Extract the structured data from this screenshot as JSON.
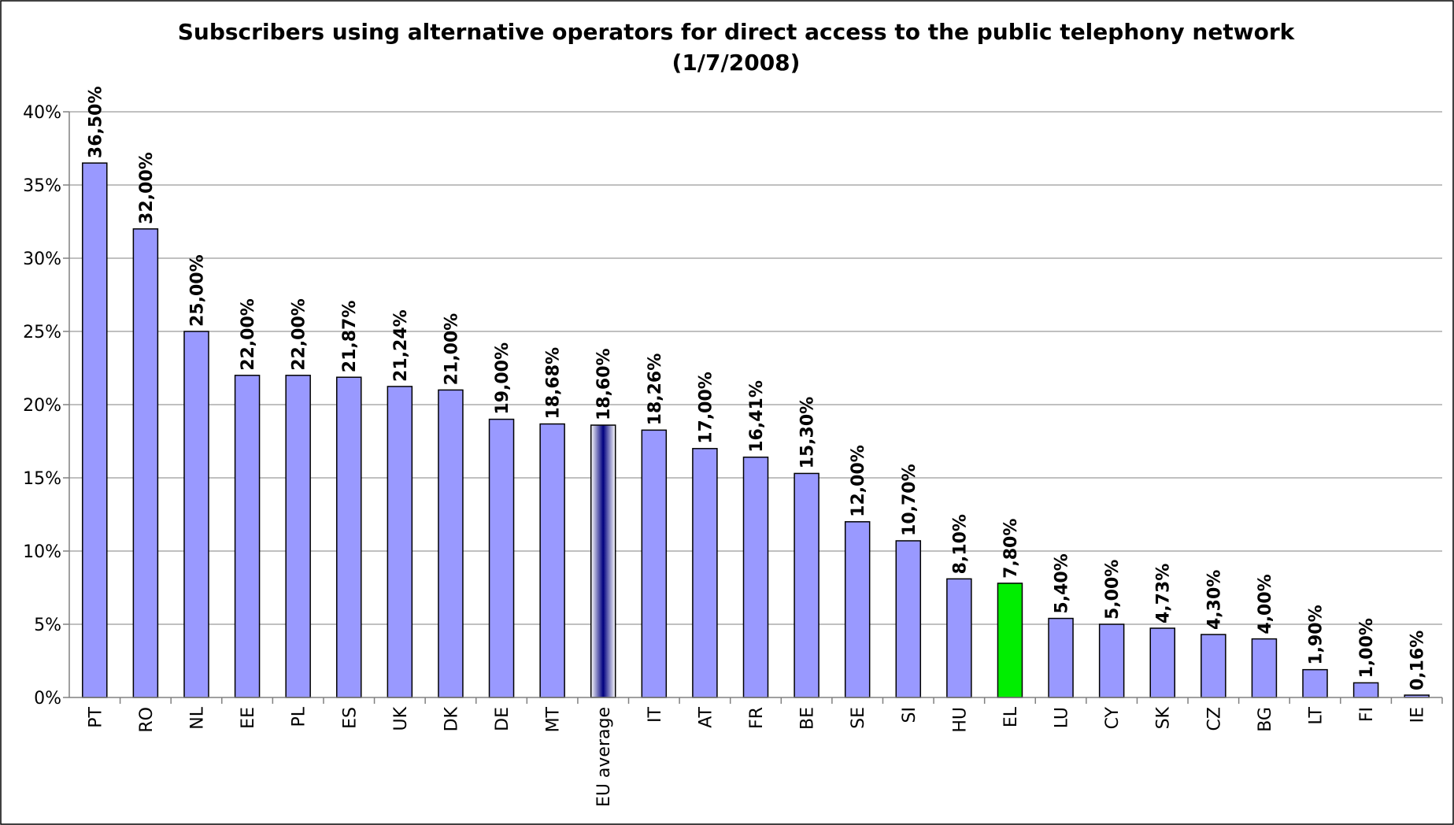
{
  "colors": {
    "bar_default": "#9999ff",
    "bar_highlight": "#00ee00",
    "bar_average_gradient": [
      "#ffffff",
      "#000080",
      "#ffffff"
    ]
  },
  "chart_data": {
    "type": "bar",
    "title": "Subscribers using alternative operators for direct access to the public telephony network",
    "subtitle": "(1/7/2008)",
    "xlabel": "",
    "ylabel": "",
    "ylim": [
      0,
      40
    ],
    "yticks": [
      0,
      5,
      10,
      15,
      20,
      25,
      30,
      35,
      40
    ],
    "ytick_labels": [
      "0%",
      "5%",
      "10%",
      "15%",
      "20%",
      "25%",
      "30%",
      "35%",
      "40%"
    ],
    "grid": true,
    "legend": "none",
    "categories": [
      "PT",
      "RO",
      "NL",
      "EE",
      "PL",
      "ES",
      "UK",
      "DK",
      "DE",
      "MT",
      "EU average",
      "IT",
      "AT",
      "FR",
      "BE",
      "SE",
      "SI",
      "HU",
      "EL",
      "LU",
      "CY",
      "SK",
      "CZ",
      "BG",
      "LT",
      "FI",
      "IE"
    ],
    "values": [
      36.5,
      32.0,
      25.0,
      22.0,
      22.0,
      21.87,
      21.24,
      21.0,
      19.0,
      18.68,
      18.6,
      18.26,
      17.0,
      16.41,
      15.3,
      12.0,
      10.7,
      8.1,
      7.8,
      5.4,
      5.0,
      4.73,
      4.3,
      4.0,
      1.9,
      1.0,
      0.16
    ],
    "data_labels": [
      "36,50%",
      "32,00%",
      "25,00%",
      "22,00%",
      "22,00%",
      "21,87%",
      "21,24%",
      "21,00%",
      "19,00%",
      "18,68%",
      "18,60%",
      "18,26%",
      "17,00%",
      "16,41%",
      "15,30%",
      "12,00%",
      "10,70%",
      "8,10%",
      "7,80%",
      "5,40%",
      "5,00%",
      "4,73%",
      "4,30%",
      "4,00%",
      "1,90%",
      "1,00%",
      "0,16%"
    ],
    "highlight": {
      "EL": "bar_highlight",
      "EU average": "bar_average_gradient"
    }
  }
}
